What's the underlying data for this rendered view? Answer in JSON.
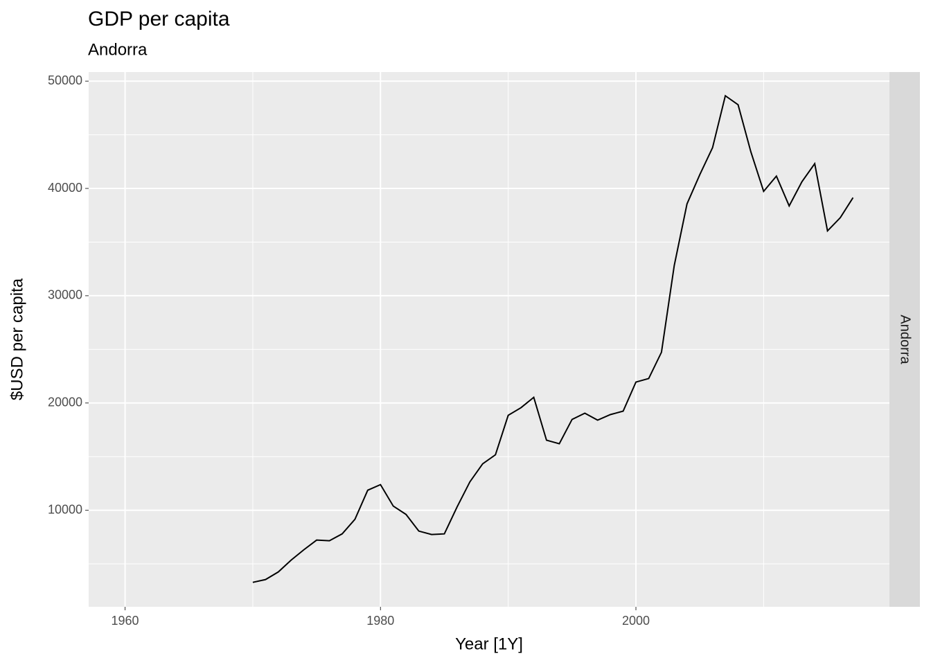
{
  "chart_data": {
    "type": "line",
    "title": "GDP per capita",
    "subtitle": "Andorra",
    "facet_label": "Andorra",
    "x_label": "Year [1Y]",
    "y_label": "$USD per capita",
    "x": [
      1970,
      1971,
      1972,
      1973,
      1974,
      1975,
      1976,
      1977,
      1978,
      1979,
      1980,
      1981,
      1982,
      1983,
      1984,
      1985,
      1986,
      1987,
      1988,
      1989,
      1990,
      1991,
      1992,
      1993,
      1994,
      1995,
      1996,
      1997,
      1998,
      1999,
      2000,
      2001,
      2002,
      2003,
      2004,
      2005,
      2006,
      2007,
      2008,
      2009,
      2010,
      2011,
      2012,
      2013,
      2014,
      2015,
      2016,
      2017
    ],
    "series": [
      {
        "name": "Andorra",
        "color": "#000000",
        "values": [
          3280,
          3540,
          4250,
          5350,
          6320,
          7220,
          7160,
          7800,
          9160,
          11870,
          12390,
          10390,
          9610,
          8060,
          7740,
          7800,
          10320,
          12650,
          14330,
          15170,
          18850,
          19560,
          20530,
          16530,
          16200,
          18470,
          19050,
          18400,
          18920,
          19240,
          21950,
          22280,
          24730,
          32810,
          38560,
          41280,
          43800,
          48640,
          47800,
          43410,
          39730,
          41150,
          38370,
          40630,
          42310,
          36040,
          37270,
          39140
        ]
      }
    ],
    "xlim": [
      1957.15,
      2019.85
    ],
    "ylim": [
      1000,
      50850
    ],
    "xticks": [
      1960,
      1980,
      2000
    ],
    "xminor": [
      1970,
      1990,
      2010
    ],
    "yticks": [
      10000,
      20000,
      30000,
      40000,
      50000
    ],
    "yminor": [
      5000,
      15000,
      25000,
      35000,
      45000
    ],
    "grid": true
  }
}
